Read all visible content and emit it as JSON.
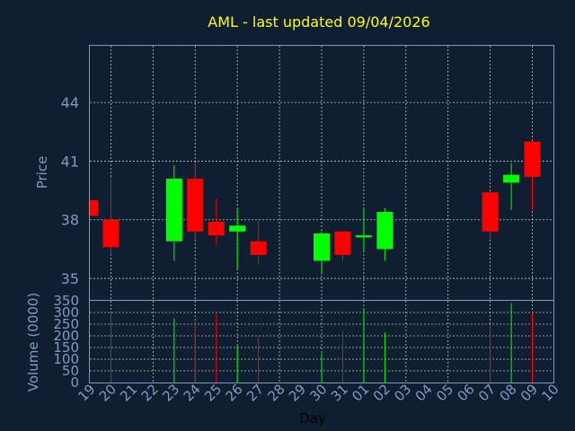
{
  "chart_data": {
    "type": "candlestick",
    "title": "AML - last updated 09/04/2026",
    "ylabel": "Price",
    "volume_ylabel": "Volume (0000)",
    "xlabel": "Day",
    "colors": {
      "up": "#00ff00",
      "down": "#ff0000",
      "title": "#ffff00",
      "axis_text": "#7f9cc0",
      "background": "#0f1e30"
    },
    "ylim": [
      33.9,
      46.9
    ],
    "yticks": [
      35,
      38,
      41,
      44
    ],
    "volume_ylim": [
      0,
      350
    ],
    "volume_yticks": [
      0,
      50,
      100,
      150,
      200,
      250,
      300,
      350
    ],
    "x_tick_labels": [
      "19",
      "20",
      "21",
      "22",
      "23",
      "24",
      "25",
      "26",
      "27",
      "28",
      "29",
      "30",
      "31",
      "01",
      "02",
      "03",
      "04",
      "05",
      "06",
      "07",
      "08",
      "09",
      "10"
    ],
    "candles": [
      {
        "x": 0,
        "open": 39.0,
        "high": 39.0,
        "low": 38.2,
        "close": 38.2
      },
      {
        "x": 1,
        "open": 38.0,
        "high": 40.2,
        "low": 36.2,
        "close": 36.6
      },
      {
        "x": 4,
        "open": 36.9,
        "high": 40.8,
        "low": 35.9,
        "close": 40.1
      },
      {
        "x": 5,
        "open": 40.1,
        "high": 40.9,
        "low": 37.0,
        "close": 37.4
      },
      {
        "x": 6,
        "open": 37.9,
        "high": 39.1,
        "low": 36.7,
        "close": 37.2
      },
      {
        "x": 7,
        "open": 37.4,
        "high": 38.6,
        "low": 35.5,
        "close": 37.7
      },
      {
        "x": 8,
        "open": 36.9,
        "high": 38.0,
        "low": 35.7,
        "close": 36.2
      },
      {
        "x": 11,
        "open": 35.9,
        "high": 37.4,
        "low": 35.2,
        "close": 37.3
      },
      {
        "x": 12,
        "open": 37.4,
        "high": 37.4,
        "low": 35.9,
        "close": 36.2
      },
      {
        "x": 13,
        "open": 37.1,
        "high": 38.6,
        "low": 36.4,
        "close": 37.2
      },
      {
        "x": 14,
        "open": 36.5,
        "high": 38.6,
        "low": 35.9,
        "close": 38.4
      },
      {
        "x": 19,
        "open": 39.4,
        "high": 39.4,
        "low": 37.0,
        "close": 37.4
      },
      {
        "x": 20,
        "open": 39.9,
        "high": 40.9,
        "low": 38.5,
        "close": 40.3
      },
      {
        "x": 21,
        "open": 42.0,
        "high": 42.0,
        "low": 38.5,
        "close": 40.2
      }
    ],
    "volume": [
      {
        "x": 1,
        "value": 300,
        "dir": "down"
      },
      {
        "x": 4,
        "value": 275,
        "dir": "up"
      },
      {
        "x": 5,
        "value": 255,
        "dir": "down"
      },
      {
        "x": 6,
        "value": 295,
        "dir": "down"
      },
      {
        "x": 7,
        "value": 158,
        "dir": "up"
      },
      {
        "x": 8,
        "value": 195,
        "dir": "down"
      },
      {
        "x": 11,
        "value": 125,
        "dir": "up"
      },
      {
        "x": 12,
        "value": 222,
        "dir": "down"
      },
      {
        "x": 13,
        "value": 315,
        "dir": "up"
      },
      {
        "x": 14,
        "value": 215,
        "dir": "up"
      },
      {
        "x": 19,
        "value": 248,
        "dir": "down"
      },
      {
        "x": 20,
        "value": 340,
        "dir": "up"
      },
      {
        "x": 21,
        "value": 300,
        "dir": "down"
      }
    ]
  }
}
